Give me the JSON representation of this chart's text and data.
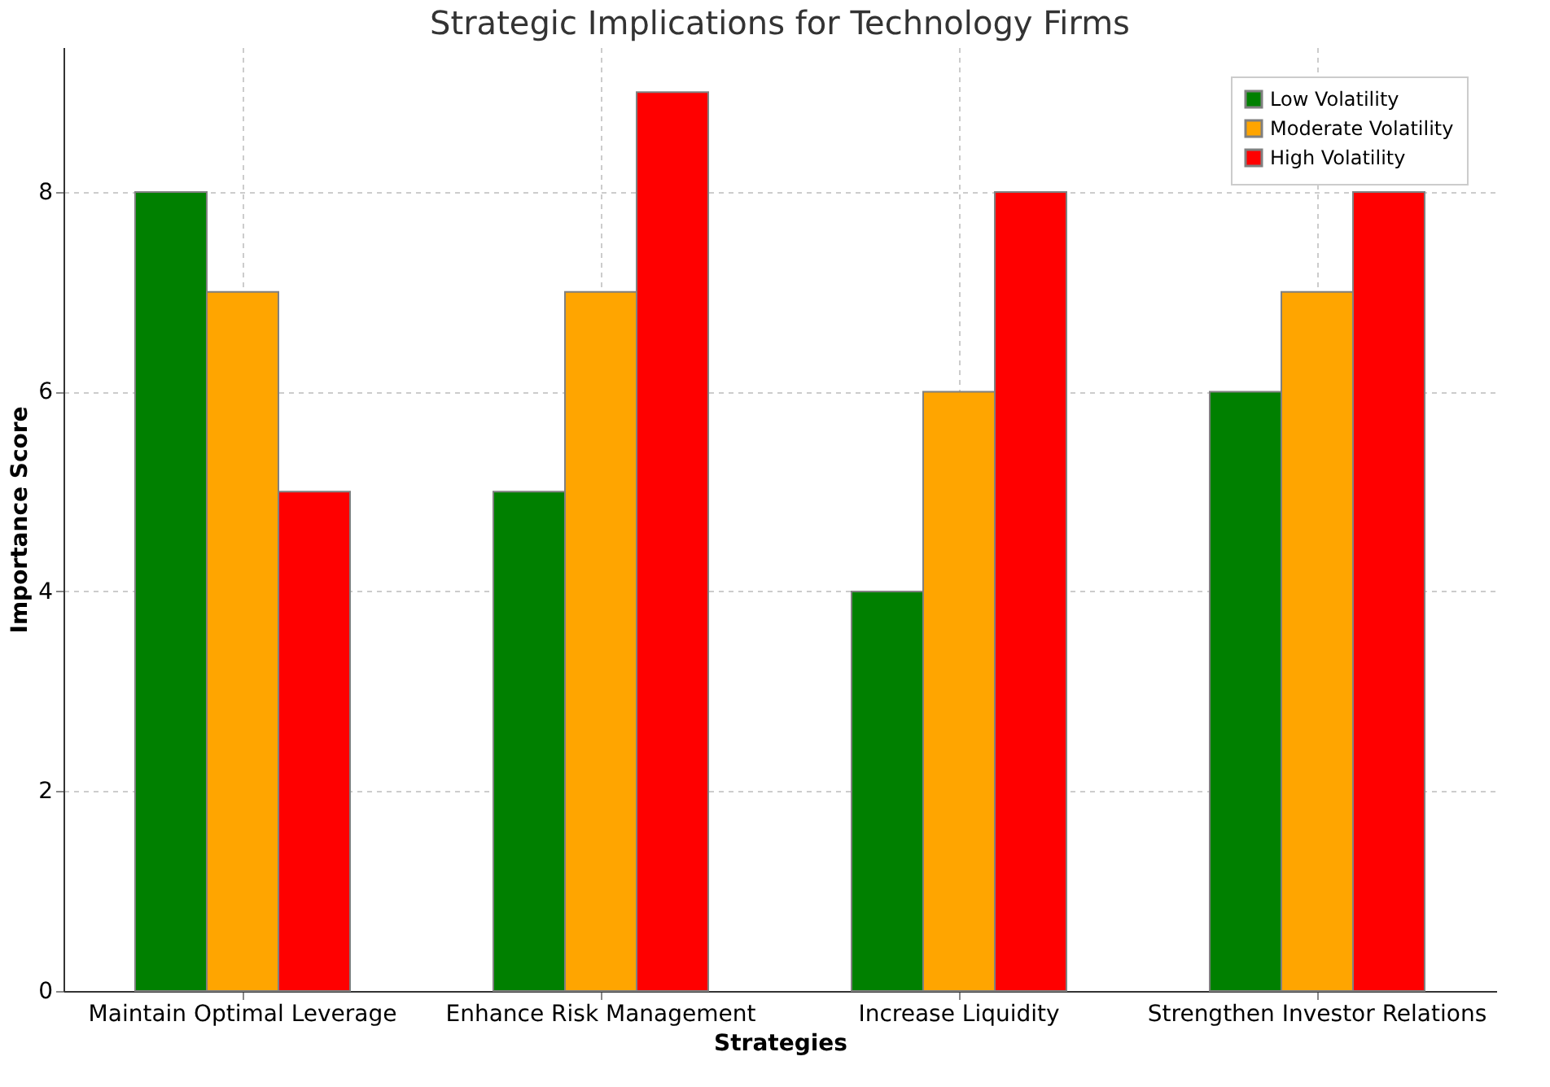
{
  "chart_data": {
    "type": "bar",
    "title": "Strategic Implications for Technology Firms",
    "xlabel": "Strategies",
    "ylabel": "Importance Score",
    "categories": [
      "Maintain Optimal Leverage",
      "Enhance Risk Management",
      "Increase Liquidity",
      "Strengthen Investor Relations"
    ],
    "series": [
      {
        "name": "Low Volatility",
        "color": "#008000",
        "values": [
          8,
          5,
          4,
          6
        ]
      },
      {
        "name": "Moderate Volatility",
        "color": "#ffa500",
        "values": [
          7,
          7,
          6,
          7
        ]
      },
      {
        "name": "High Volatility",
        "color": "#ff0000",
        "values": [
          5,
          9,
          8,
          8
        ]
      }
    ],
    "ylim": [
      0,
      9.45
    ],
    "yticks": [
      0,
      2,
      4,
      6,
      8
    ],
    "grid": true,
    "legend": "top right"
  }
}
